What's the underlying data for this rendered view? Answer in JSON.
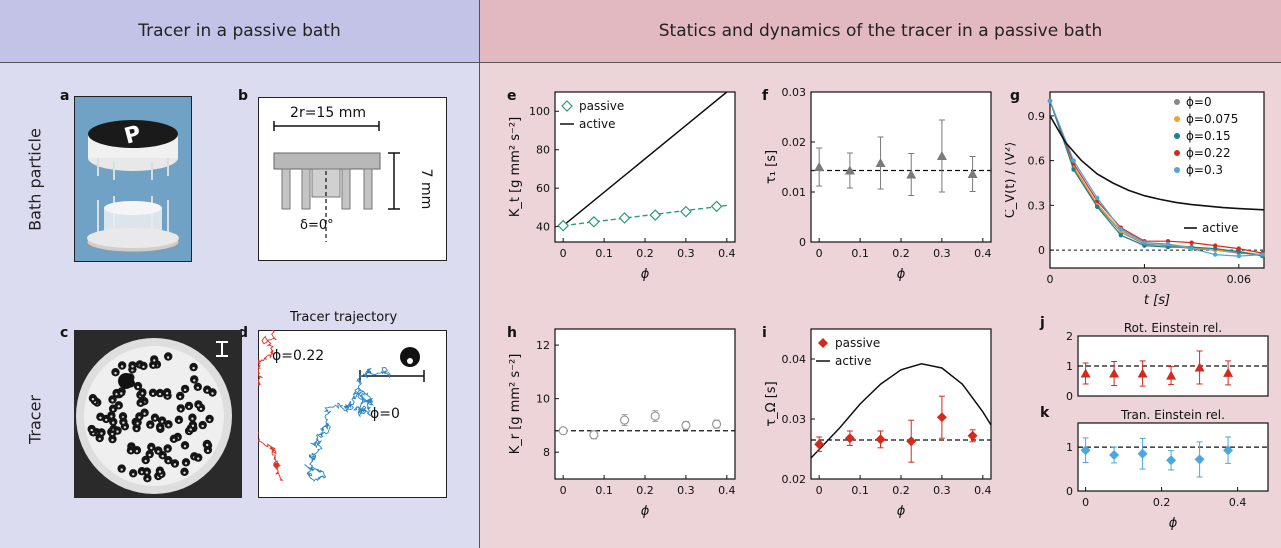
{
  "headers": {
    "left": "Tracer in a passive bath",
    "right": "Statics and dynamics of the tracer in a passive bath"
  },
  "colors": {
    "left_header": "#c3c3e8",
    "left_bg": "#dcdcf1",
    "right_header": "#e3b9c1",
    "right_bg": "#ecd4d8",
    "passive_green": "#2a9d76",
    "passive_red": "#d42a1d",
    "gray": "#7a7a7a",
    "blue": "#4aa8df"
  },
  "row_labels": {
    "top": "Bath particle",
    "bottom": "Tracer"
  },
  "panels": {
    "a": "a",
    "b": "b",
    "c": "c",
    "d": "d",
    "e": "e",
    "f": "f",
    "g": "g",
    "h": "h",
    "i": "i",
    "j": "j",
    "k": "k"
  },
  "panel_b": {
    "diameter_label": "2r=15 mm",
    "height_label": "7 mm",
    "delta_label": "δ=0°"
  },
  "panel_d": {
    "title": "Tracer trajectory",
    "label_red": "ϕ=0.22",
    "label_blue": "ϕ=0"
  },
  "chart_data": [
    {
      "panel": "e",
      "type": "line",
      "xlabel": "ϕ",
      "ylabel": "K_t [g mm² s⁻²]",
      "xlim": [
        -0.02,
        0.42
      ],
      "ylim": [
        32,
        110
      ],
      "xticks": [
        "0",
        "0.1",
        "0.2",
        "0.3",
        "0.4"
      ],
      "yticks": [
        "40",
        "60",
        "80",
        "100"
      ],
      "legend": [
        "passive",
        "active"
      ],
      "legend_position": "top-left",
      "series": [
        {
          "name": "passive",
          "x": [
            0,
            0.075,
            0.15,
            0.225,
            0.3,
            0.375
          ],
          "values": [
            40.5,
            42.5,
            44.5,
            46,
            47.8,
            50.5
          ]
        },
        {
          "name": "active",
          "x": [
            0,
            0.4
          ],
          "values": [
            40.5,
            110
          ]
        }
      ],
      "fit_line": {
        "x": [
          0,
          0.4
        ],
        "values": [
          40.5,
          51
        ]
      }
    },
    {
      "panel": "f",
      "type": "scatter",
      "xlabel": "ϕ",
      "ylabel": "τ₁ [s]",
      "xlim": [
        -0.02,
        0.42
      ],
      "ylim": [
        0,
        0.03
      ],
      "xticks": [
        "0",
        "0.1",
        "0.2",
        "0.3",
        "0.4"
      ],
      "yticks": [
        "0",
        "0.01",
        "0.02",
        "0.03"
      ],
      "x": [
        0,
        0.075,
        0.15,
        0.225,
        0.3,
        0.375
      ],
      "values": [
        0.015,
        0.0143,
        0.0158,
        0.0135,
        0.0172,
        0.0136
      ],
      "errors": [
        0.0038,
        0.0035,
        0.0052,
        0.0042,
        0.0072,
        0.0035
      ],
      "reference_line": 0.0143
    },
    {
      "panel": "g",
      "type": "line",
      "xlabel": "t [s]",
      "ylabel": "C_V(t) / ⟨V²⟩",
      "xlim": [
        0,
        0.068
      ],
      "ylim": [
        -0.12,
        1.06
      ],
      "xticks": [
        "0",
        "0.03",
        "0.06"
      ],
      "yticks": [
        "0",
        "0.3",
        "0.6",
        "0.9"
      ],
      "legend": [
        "ϕ=0",
        "ϕ=0.075",
        "ϕ=0.15",
        "ϕ=0.22",
        "ϕ=0.3",
        "active"
      ],
      "legend_position": "top-right",
      "series": [
        {
          "name": "ϕ=0",
          "x": [
            0,
            0.0075,
            0.015,
            0.0225,
            0.03,
            0.0375,
            0.045,
            0.0525,
            0.06,
            0.0675
          ],
          "values": [
            1.0,
            0.55,
            0.3,
            0.12,
            0.04,
            0.03,
            0.01,
            0.0,
            -0.02,
            -0.03
          ]
        },
        {
          "name": "ϕ=0.075",
          "x": [
            0,
            0.0075,
            0.015,
            0.0225,
            0.03,
            0.0375,
            0.045,
            0.0525,
            0.06,
            0.0675
          ],
          "values": [
            1.0,
            0.56,
            0.31,
            0.13,
            0.05,
            0.04,
            0.02,
            0.0,
            -0.01,
            -0.03
          ]
        },
        {
          "name": "ϕ=0.15",
          "x": [
            0,
            0.0075,
            0.015,
            0.0225,
            0.03,
            0.0375,
            0.045,
            0.0525,
            0.06,
            0.0675
          ],
          "values": [
            1.0,
            0.54,
            0.29,
            0.1,
            0.03,
            0.02,
            0.02,
            0.01,
            -0.01,
            -0.04
          ]
        },
        {
          "name": "ϕ=0.22",
          "x": [
            0,
            0.0075,
            0.015,
            0.0225,
            0.03,
            0.0375,
            0.045,
            0.0525,
            0.06,
            0.0675
          ],
          "values": [
            1.0,
            0.58,
            0.33,
            0.15,
            0.06,
            0.06,
            0.05,
            0.03,
            0.01,
            -0.02
          ]
        },
        {
          "name": "ϕ=0.3",
          "x": [
            0,
            0.0075,
            0.015,
            0.0225,
            0.03,
            0.0375,
            0.045,
            0.0525,
            0.06,
            0.0675
          ],
          "values": [
            1.0,
            0.6,
            0.35,
            0.14,
            0.05,
            0.04,
            0.01,
            -0.03,
            -0.04,
            -0.03
          ]
        },
        {
          "name": "active",
          "x": [
            0,
            0.005,
            0.01,
            0.015,
            0.02,
            0.025,
            0.03,
            0.035,
            0.04,
            0.045,
            0.05,
            0.055,
            0.06,
            0.068
          ],
          "values": [
            0.9,
            0.72,
            0.6,
            0.51,
            0.45,
            0.4,
            0.365,
            0.34,
            0.32,
            0.305,
            0.295,
            0.285,
            0.278,
            0.27
          ]
        }
      ]
    },
    {
      "panel": "h",
      "type": "scatter",
      "xlabel": "ϕ",
      "ylabel": "K_r [g mm² s⁻²]",
      "xlim": [
        -0.02,
        0.42
      ],
      "ylim": [
        7,
        12.6
      ],
      "xticks": [
        "0",
        "0.1",
        "0.2",
        "0.3",
        "0.4"
      ],
      "yticks": [
        "8",
        "10",
        "12"
      ],
      "x": [
        0,
        0.075,
        0.15,
        0.225,
        0.3,
        0.375
      ],
      "values": [
        8.8,
        8.65,
        9.2,
        9.35,
        9.0,
        9.05
      ],
      "errors": [
        0.1,
        0.15,
        0.2,
        0.2,
        0.15,
        0.15
      ],
      "reference_line": 8.8
    },
    {
      "panel": "i",
      "type": "line",
      "xlabel": "ϕ",
      "ylabel": "τ_Ω [s]",
      "xlim": [
        -0.02,
        0.42
      ],
      "ylim": [
        0.02,
        0.045
      ],
      "xticks": [
        "0",
        "0.1",
        "0.2",
        "0.3",
        "0.4"
      ],
      "yticks": [
        "0.02",
        "0.03",
        "0.04"
      ],
      "legend": [
        "passive",
        "active"
      ],
      "legend_position": "top-left",
      "series": [
        {
          "name": "passive",
          "x": [
            0,
            0.075,
            0.15,
            0.225,
            0.3,
            0.375
          ],
          "values": [
            0.0258,
            0.0268,
            0.0266,
            0.0263,
            0.0303,
            0.0272
          ],
          "errors": [
            0.0012,
            0.0012,
            0.0014,
            0.0035,
            0.0035,
            0.001
          ]
        },
        {
          "name": "active",
          "x": [
            -0.02,
            0.05,
            0.1,
            0.15,
            0.2,
            0.25,
            0.3,
            0.35,
            0.4,
            0.42
          ],
          "values": [
            0.0235,
            0.0285,
            0.0325,
            0.0358,
            0.0382,
            0.0392,
            0.0385,
            0.0358,
            0.0312,
            0.029
          ]
        }
      ],
      "reference_line": 0.0265
    },
    {
      "panel": "j",
      "type": "scatter",
      "title": "Rot. Einstein rel.",
      "xlim": [
        -0.02,
        0.48
      ],
      "ylim": [
        0,
        2
      ],
      "yticks": [
        "0",
        "1",
        "2"
      ],
      "x": [
        0,
        0.075,
        0.15,
        0.225,
        0.3,
        0.375
      ],
      "values": [
        0.75,
        0.75,
        0.75,
        0.68,
        0.95,
        0.77
      ],
      "errors": [
        0.35,
        0.4,
        0.42,
        0.3,
        0.55,
        0.4
      ],
      "reference_line": 1
    },
    {
      "panel": "k",
      "type": "scatter",
      "title": "Tran. Einstein rel.",
      "xlabel": "ϕ",
      "xlim": [
        -0.02,
        0.48
      ],
      "ylim": [
        0,
        1.55
      ],
      "xticks": [
        "0",
        "0.2",
        "0.4"
      ],
      "yticks": [
        "0",
        "1"
      ],
      "x": [
        0,
        0.075,
        0.15,
        0.225,
        0.3,
        0.375
      ],
      "values": [
        0.93,
        0.82,
        0.85,
        0.7,
        0.72,
        0.93
      ],
      "errors": [
        0.28,
        0.18,
        0.35,
        0.22,
        0.4,
        0.3
      ],
      "reference_line": 1
    }
  ]
}
